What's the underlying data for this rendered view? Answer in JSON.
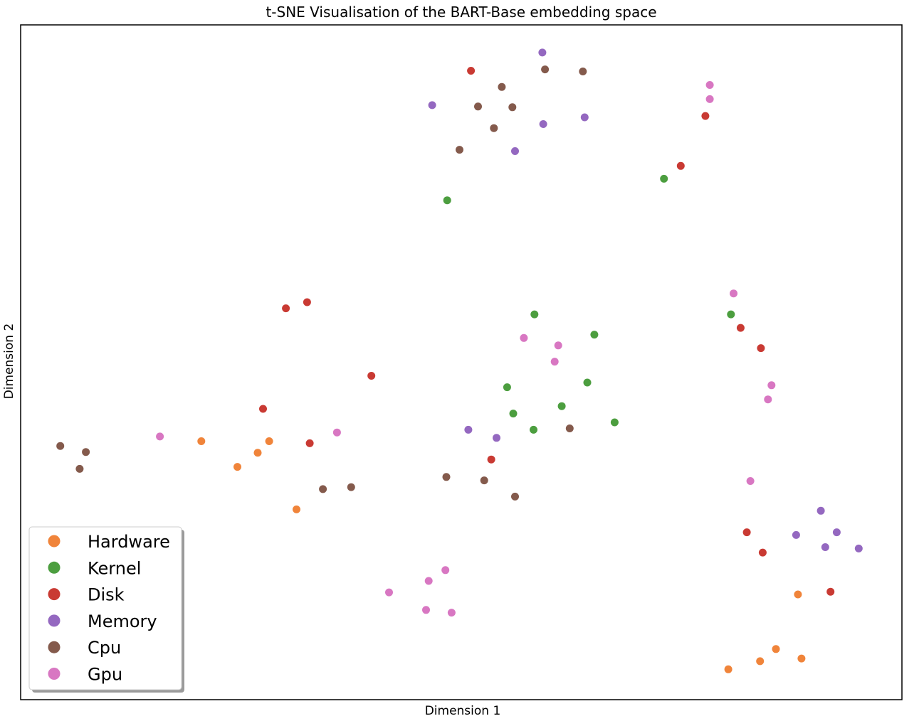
{
  "chart_data": {
    "type": "scatter",
    "title": "t-SNE Visualisation of the BART-Base embedding space",
    "xlabel": "Dimension 1",
    "ylabel": "Dimension 2",
    "xlim": [
      0,
      100
    ],
    "ylim": [
      0,
      100
    ],
    "ticks_shown": false,
    "grid": false,
    "legend_position": "lower-left",
    "series": [
      {
        "name": "Hardware",
        "color": "#F0843A",
        "points": [
          [
            20.5,
            38.3
          ],
          [
            24.6,
            34.5
          ],
          [
            26.9,
            36.6
          ],
          [
            28.2,
            38.3
          ],
          [
            31.3,
            28.2
          ],
          [
            88.2,
            15.6
          ],
          [
            80.3,
            4.5
          ],
          [
            83.9,
            5.7
          ],
          [
            85.7,
            7.5
          ],
          [
            88.6,
            6.1
          ]
        ]
      },
      {
        "name": "Kernel",
        "color": "#4C9E3F",
        "points": [
          [
            48.4,
            74.0
          ],
          [
            73.0,
            77.2
          ],
          [
            58.3,
            57.1
          ],
          [
            65.1,
            54.1
          ],
          [
            55.2,
            46.3
          ],
          [
            61.4,
            43.5
          ],
          [
            55.9,
            42.4
          ],
          [
            64.3,
            47.0
          ],
          [
            58.2,
            40.0
          ],
          [
            67.4,
            41.1
          ],
          [
            80.6,
            57.1
          ]
        ]
      },
      {
        "name": "Disk",
        "color": "#C93A33",
        "points": [
          [
            51.1,
            93.2
          ],
          [
            77.7,
            86.5
          ],
          [
            74.9,
            79.1
          ],
          [
            30.1,
            58.0
          ],
          [
            32.5,
            58.9
          ],
          [
            39.8,
            48.0
          ],
          [
            27.5,
            43.1
          ],
          [
            32.8,
            38.0
          ],
          [
            53.4,
            35.6
          ],
          [
            81.7,
            55.1
          ],
          [
            84.0,
            52.1
          ],
          [
            82.4,
            24.8
          ],
          [
            84.2,
            21.8
          ],
          [
            91.9,
            16.0
          ]
        ]
      },
      {
        "name": "Memory",
        "color": "#9468C0",
        "points": [
          [
            59.2,
            95.9
          ],
          [
            46.7,
            88.1
          ],
          [
            64.0,
            86.3
          ],
          [
            59.3,
            85.3
          ],
          [
            56.1,
            81.3
          ],
          [
            50.8,
            40.0
          ],
          [
            54.0,
            38.8
          ],
          [
            90.8,
            28.0
          ],
          [
            88.0,
            24.4
          ],
          [
            92.6,
            24.8
          ],
          [
            91.3,
            22.6
          ],
          [
            95.1,
            22.4
          ]
        ]
      },
      {
        "name": "Cpu",
        "color": "#845A4C",
        "points": [
          [
            59.5,
            93.4
          ],
          [
            63.8,
            93.1
          ],
          [
            54.6,
            90.8
          ],
          [
            51.9,
            87.9
          ],
          [
            55.8,
            87.8
          ],
          [
            53.7,
            84.7
          ],
          [
            49.8,
            81.5
          ],
          [
            4.5,
            37.6
          ],
          [
            7.4,
            36.7
          ],
          [
            6.7,
            34.2
          ],
          [
            34.3,
            31.2
          ],
          [
            37.5,
            31.5
          ],
          [
            62.3,
            40.2
          ],
          [
            48.3,
            33.0
          ],
          [
            52.6,
            32.5
          ],
          [
            56.1,
            30.1
          ]
        ]
      },
      {
        "name": "Gpu",
        "color": "#D877C2",
        "points": [
          [
            78.2,
            91.1
          ],
          [
            78.2,
            89.0
          ],
          [
            80.9,
            60.2
          ],
          [
            57.1,
            53.6
          ],
          [
            61.0,
            52.5
          ],
          [
            60.6,
            50.1
          ],
          [
            85.2,
            46.6
          ],
          [
            84.8,
            44.5
          ],
          [
            15.8,
            39.0
          ],
          [
            35.9,
            39.6
          ],
          [
            82.8,
            32.4
          ],
          [
            48.2,
            19.2
          ],
          [
            46.3,
            17.6
          ],
          [
            41.8,
            15.9
          ],
          [
            46.0,
            13.3
          ],
          [
            48.9,
            12.9
          ]
        ]
      }
    ]
  }
}
